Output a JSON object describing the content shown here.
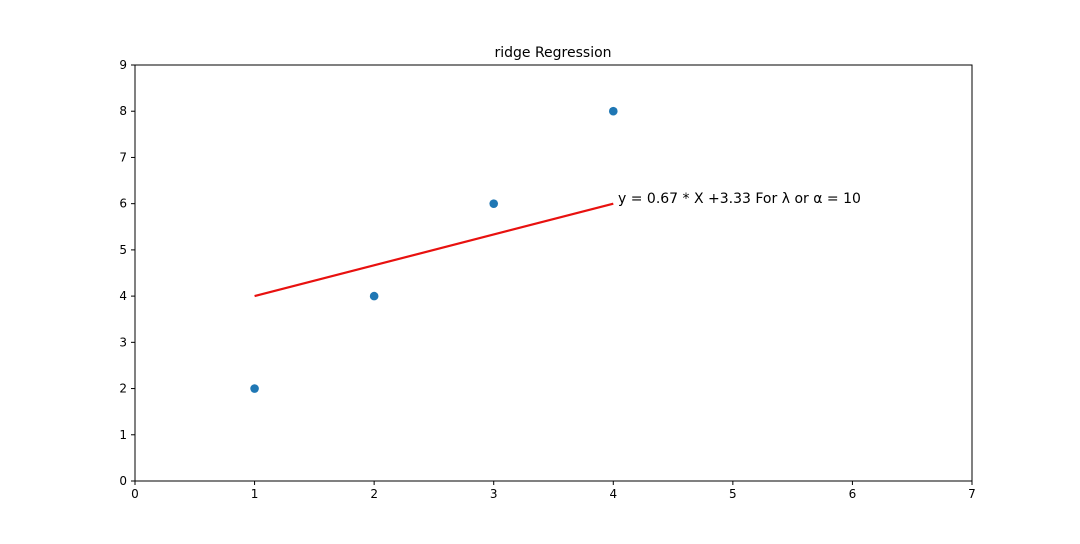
{
  "chart_data": {
    "type": "scatter",
    "title": "ridge Regression",
    "xlabel": "",
    "ylabel": "",
    "xlim": [
      0,
      7
    ],
    "ylim": [
      0,
      9
    ],
    "x_ticks": [
      0,
      1,
      2,
      3,
      4,
      5,
      6,
      7
    ],
    "y_ticks": [
      0,
      1,
      2,
      3,
      4,
      5,
      6,
      7,
      8,
      9
    ],
    "grid": false,
    "legend": "none",
    "series": [
      {
        "type": "scatter",
        "color": "#1f77b4",
        "points": [
          {
            "x": 1,
            "y": 2
          },
          {
            "x": 2,
            "y": 4
          },
          {
            "x": 3,
            "y": 6
          },
          {
            "x": 4,
            "y": 8
          }
        ]
      },
      {
        "type": "line",
        "color": "#e8110f",
        "points": [
          {
            "x": 1,
            "y": 4
          },
          {
            "x": 4,
            "y": 6
          }
        ]
      }
    ],
    "annotation": {
      "text": "y = 0.67 * X +3.33  For λ or  α = 10",
      "x": 4,
      "y": 6
    }
  }
}
